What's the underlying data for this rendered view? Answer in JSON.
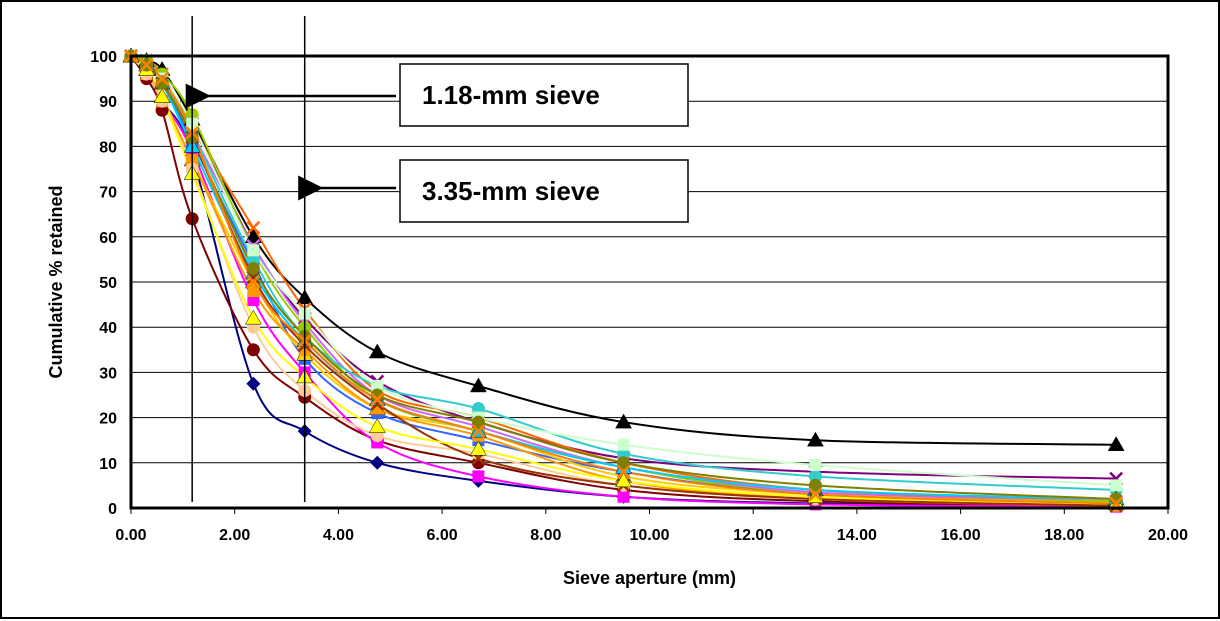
{
  "chart_data": {
    "type": "line",
    "title": "",
    "xlabel": "Sieve aperture (mm)",
    "ylabel": "Cumulative % retained",
    "xlim": [
      0,
      20
    ],
    "ylim": [
      0,
      100
    ],
    "x_ticks": [
      "0.00",
      "2.00",
      "4.00",
      "6.00",
      "8.00",
      "10.00",
      "12.00",
      "14.00",
      "16.00",
      "18.00",
      "20.00"
    ],
    "y_ticks": [
      "0",
      "10",
      "20",
      "30",
      "40",
      "50",
      "60",
      "70",
      "80",
      "90",
      "100"
    ],
    "grid": "horizontal",
    "legend": "none",
    "x": [
      0,
      0.3,
      0.6,
      1.18,
      2.36,
      3.35,
      4.75,
      6.7,
      9.5,
      13.2,
      19.0
    ],
    "annotations": [
      {
        "text": "1.18-mm sieve",
        "x": 1.18
      },
      {
        "text": "3.35-mm sieve",
        "x": 3.35
      }
    ],
    "series": [
      {
        "color": "#000080",
        "marker": "diamond",
        "values": [
          100,
          97,
          90,
          78,
          27.5,
          17,
          10,
          6,
          2.5,
          1,
          0.5
        ]
      },
      {
        "color": "#800000",
        "marker": "circle",
        "values": [
          100,
          95,
          88,
          64,
          35,
          24.5,
          15,
          10,
          4,
          1.5,
          0.5
        ]
      },
      {
        "color": "#000000",
        "marker": "triangle",
        "values": [
          100,
          99,
          97,
          86,
          60,
          46.5,
          34.5,
          27,
          19,
          15,
          14
        ]
      },
      {
        "color": "#800080",
        "marker": "x",
        "values": [
          100,
          98,
          95,
          85,
          58,
          42,
          28,
          19,
          11,
          8,
          6.5
        ]
      },
      {
        "color": "#ff6600",
        "marker": "x",
        "values": [
          100,
          99,
          96,
          84,
          62,
          44,
          26,
          20,
          10,
          4,
          1.5
        ]
      },
      {
        "color": "#cc66ff",
        "marker": "x",
        "values": [
          100,
          99,
          95,
          83,
          58,
          41,
          25,
          18,
          9,
          3.5,
          1.5
        ]
      },
      {
        "color": "#ff00ff",
        "marker": "square",
        "values": [
          100,
          96,
          90,
          79,
          46,
          30,
          14.5,
          7,
          2.5,
          0.8,
          0.3
        ]
      },
      {
        "color": "#99cc00",
        "marker": "circle",
        "values": [
          100,
          99,
          96,
          87,
          57,
          40,
          24,
          17,
          9,
          3,
          1.5
        ]
      },
      {
        "color": "#3366ff",
        "marker": "square",
        "values": [
          100,
          98,
          94,
          81,
          54,
          33,
          21,
          15,
          8,
          3,
          1
        ]
      },
      {
        "color": "#ffcc00",
        "marker": "triangle",
        "values": [
          100,
          97,
          91,
          77,
          50,
          34,
          22,
          17,
          7,
          3,
          1
        ]
      },
      {
        "color": "#ff9900",
        "marker": "square",
        "values": [
          100,
          96,
          90,
          77,
          48,
          35,
          22,
          16,
          6,
          2,
          0.5
        ]
      },
      {
        "color": "#33cccc",
        "marker": "circle",
        "values": [
          100,
          98,
          95,
          83,
          55,
          38,
          27,
          22,
          12,
          7,
          4
        ]
      },
      {
        "color": "#ccffcc",
        "marker": "square",
        "values": [
          100,
          98,
          95,
          85,
          57,
          43,
          27,
          20,
          14,
          9.5,
          5
        ]
      },
      {
        "color": "#ffcc99",
        "marker": "circle",
        "values": [
          100,
          96,
          90,
          75,
          40,
          26,
          16,
          12,
          5,
          2,
          1
        ]
      },
      {
        "color": "#00ccff",
        "marker": "triangle",
        "values": [
          100,
          98,
          94,
          80,
          52,
          37,
          24,
          17,
          9,
          4,
          2
        ]
      },
      {
        "color": "#993300",
        "marker": "x",
        "values": [
          100,
          98,
          94,
          82,
          51,
          36,
          23,
          11,
          5,
          2,
          0.5
        ]
      },
      {
        "color": "#ffff00",
        "marker": "triangle",
        "values": [
          100,
          97,
          91,
          74,
          42,
          29,
          18,
          13,
          6,
          2.5,
          1
        ]
      },
      {
        "color": "#808000",
        "marker": "circle",
        "values": [
          100,
          98,
          94,
          82,
          53,
          38,
          25,
          19,
          10,
          5,
          2
        ]
      },
      {
        "color": "#ff8000",
        "marker": "x",
        "values": [
          100,
          98,
          95,
          83,
          50,
          37,
          24,
          17,
          8,
          3,
          1
        ]
      }
    ]
  }
}
